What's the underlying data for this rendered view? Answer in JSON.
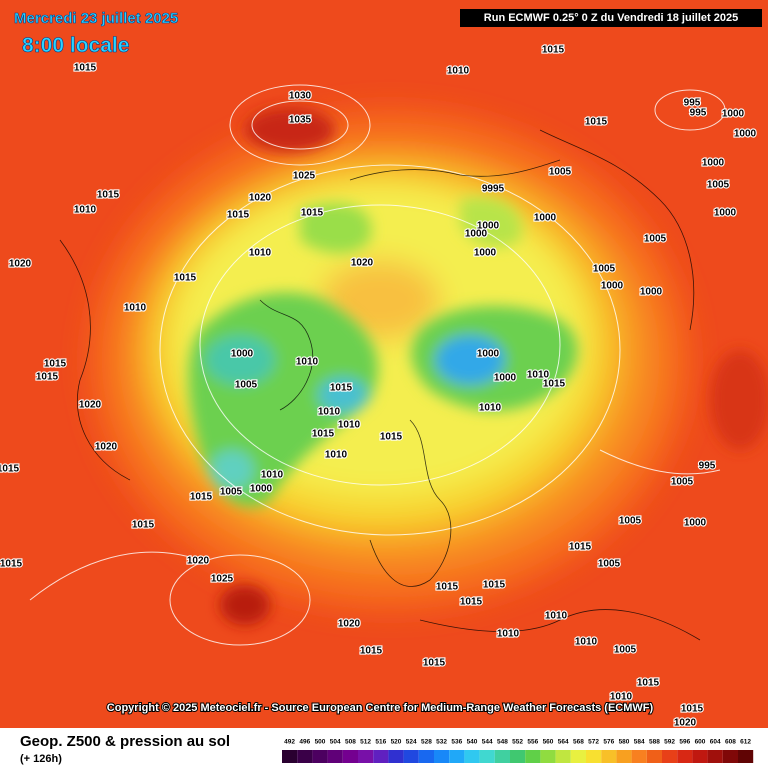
{
  "header": {
    "date": "Mercredi 23 juillet 2025",
    "time": "8:00 locale",
    "run": "Run ECMWF 0.25° 0 Z du Vendredi 18 juillet 2025"
  },
  "copyright": "Copyright © 2025 Meteociel.fr - Source European Centre for Medium-Range Weather Forecasts (ECMWF)",
  "footer": {
    "title": "Geop. Z500 & pression au sol",
    "lead": "(+ 126h)"
  },
  "scale": [
    492,
    496,
    500,
    504,
    508,
    512,
    516,
    520,
    524,
    528,
    532,
    536,
    540,
    544,
    548,
    552,
    556,
    560,
    564,
    568,
    572,
    576,
    580,
    584,
    588,
    592,
    596,
    600,
    604,
    608,
    612
  ],
  "pressure_labels": [
    "1015",
    "1010",
    "1015",
    "1030",
    "1035",
    "995",
    "995",
    "1000",
    "1015",
    "1000",
    "1025",
    "1005",
    "9995",
    "1000",
    "1005",
    "1020",
    "1015",
    "1015",
    "1015",
    "1000",
    "1000",
    "1010",
    "1000",
    "1000",
    "1005",
    "1010",
    "1020",
    "1000",
    "1020",
    "1015",
    "1005",
    "1000",
    "1010",
    "1000",
    "1000",
    "1010",
    "1000",
    "1000",
    "1015",
    "1015",
    "1005",
    "1015",
    "1010",
    "1015",
    "1010",
    "1010",
    "1020",
    "1010",
    "1015",
    "1015",
    "1010",
    "1010",
    "1005",
    "1000",
    "1015",
    "1020",
    "1015",
    "995",
    "1005",
    "1015",
    "1000",
    "1005",
    "1015",
    "1020",
    "1015",
    "1005",
    "1025",
    "1015",
    "1015",
    "1015",
    "1010",
    "1010",
    "1020",
    "1015",
    "1010",
    "1005",
    "1015",
    "1015",
    "1010",
    "1015",
    "1020"
  ]
}
